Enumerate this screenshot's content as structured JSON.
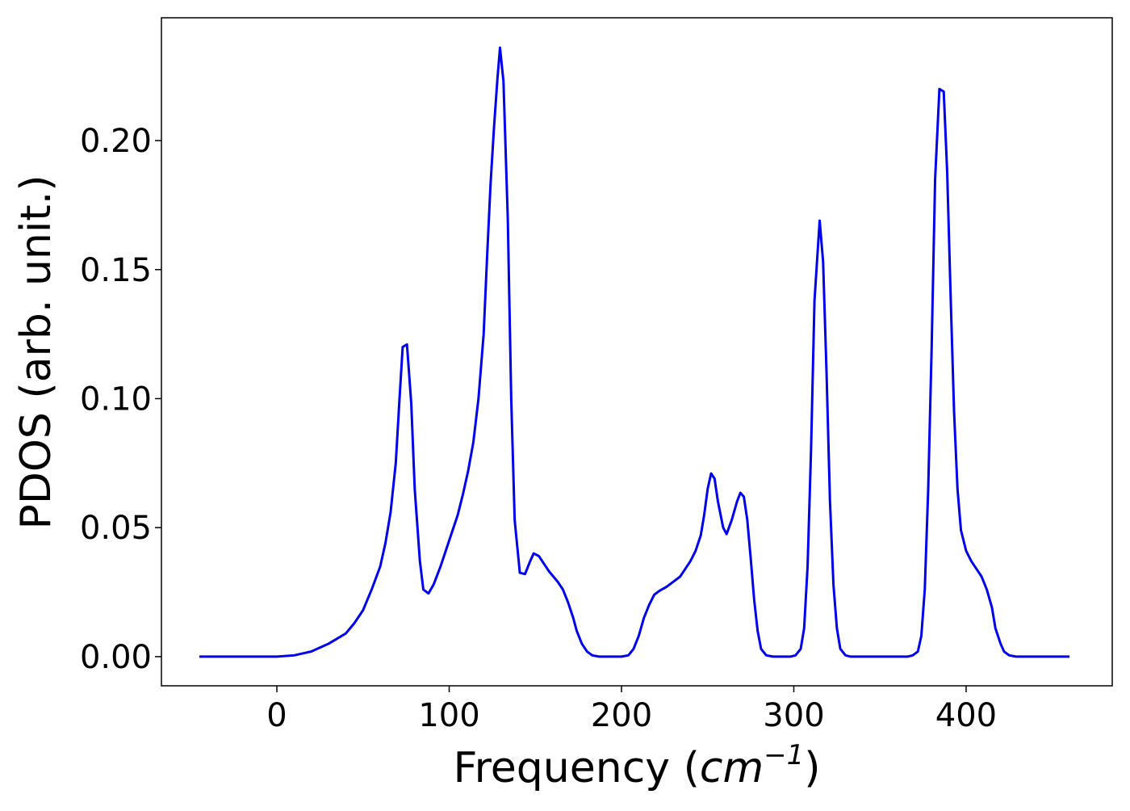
{
  "chart_data": {
    "type": "line",
    "x_label": {
      "prefix": "Frequency (",
      "unit": "cm",
      "exponent": "−1",
      "suffix": ")"
    },
    "y_label": "PDOS (arb. unit.)",
    "xlim": [
      -67,
      484.8
    ],
    "ylim": [
      -0.0113,
      0.2476
    ],
    "xticks": [
      0,
      100,
      200,
      300,
      400
    ],
    "yticks": [
      {
        "value": 0,
        "label": "0.00"
      },
      {
        "value": 0.05,
        "label": "0.05"
      },
      {
        "value": 0.1,
        "label": "0.10"
      },
      {
        "value": 0.15,
        "label": "0.15"
      },
      {
        "value": 0.2,
        "label": "0.20"
      }
    ],
    "grid": false,
    "x": [
      -45,
      0,
      10,
      20,
      30,
      40,
      45,
      50,
      55,
      60,
      63,
      66,
      69,
      71,
      73,
      75.5,
      78,
      80,
      83,
      85,
      88,
      91,
      95,
      100,
      105,
      108,
      111,
      114,
      117,
      120,
      122,
      124,
      126,
      128,
      129.5,
      131.5,
      134,
      136,
      138,
      141,
      144,
      147,
      149,
      152,
      155,
      158,
      163,
      166,
      169,
      172,
      174,
      177,
      180,
      183,
      187,
      200,
      204,
      207,
      210,
      213,
      216,
      219,
      222,
      226,
      230,
      234,
      237,
      240,
      243,
      246,
      248,
      250,
      252,
      254,
      256,
      259,
      261,
      264,
      267,
      269,
      271,
      273,
      275,
      277,
      279,
      281,
      284,
      288,
      298,
      301,
      304,
      306,
      308,
      310,
      312,
      315,
      317,
      319,
      321,
      323,
      325,
      327,
      330,
      333,
      366,
      369,
      372,
      374,
      376,
      378,
      380,
      382,
      384.5,
      387,
      389,
      391,
      393,
      395,
      397,
      400,
      403,
      406,
      409,
      412,
      415,
      417,
      420,
      422,
      425,
      429,
      460
    ],
    "series": [
      {
        "color": "#0000ee",
        "values": [
          0,
          0,
          0.0005,
          0.002,
          0.005,
          0.009,
          0.013,
          0.018,
          0.026,
          0.035,
          0.044,
          0.056,
          0.075,
          0.098,
          0.12,
          0.121,
          0.098,
          0.065,
          0.037,
          0.026,
          0.0245,
          0.028,
          0.035,
          0.045,
          0.055,
          0.063,
          0.072,
          0.083,
          0.1,
          0.125,
          0.155,
          0.183,
          0.205,
          0.224,
          0.236,
          0.223,
          0.17,
          0.1,
          0.053,
          0.0325,
          0.032,
          0.037,
          0.04,
          0.039,
          0.036,
          0.033,
          0.029,
          0.026,
          0.021,
          0.015,
          0.01,
          0.005,
          0.002,
          0.0005,
          0,
          0,
          0.0005,
          0.003,
          0.008,
          0.015,
          0.02,
          0.024,
          0.0255,
          0.027,
          0.029,
          0.031,
          0.034,
          0.037,
          0.041,
          0.047,
          0.055,
          0.065,
          0.071,
          0.069,
          0.06,
          0.05,
          0.0475,
          0.053,
          0.06,
          0.0635,
          0.062,
          0.053,
          0.038,
          0.022,
          0.01,
          0.003,
          0.0005,
          0,
          0,
          0.0005,
          0.003,
          0.011,
          0.035,
          0.08,
          0.138,
          0.169,
          0.153,
          0.11,
          0.06,
          0.028,
          0.011,
          0.003,
          0.0005,
          0,
          0,
          0.0005,
          0.002,
          0.008,
          0.026,
          0.065,
          0.12,
          0.185,
          0.22,
          0.219,
          0.188,
          0.14,
          0.095,
          0.065,
          0.049,
          0.041,
          0.037,
          0.034,
          0.031,
          0.026,
          0.019,
          0.011,
          0.005,
          0.002,
          0.0005,
          0,
          0
        ]
      }
    ]
  }
}
